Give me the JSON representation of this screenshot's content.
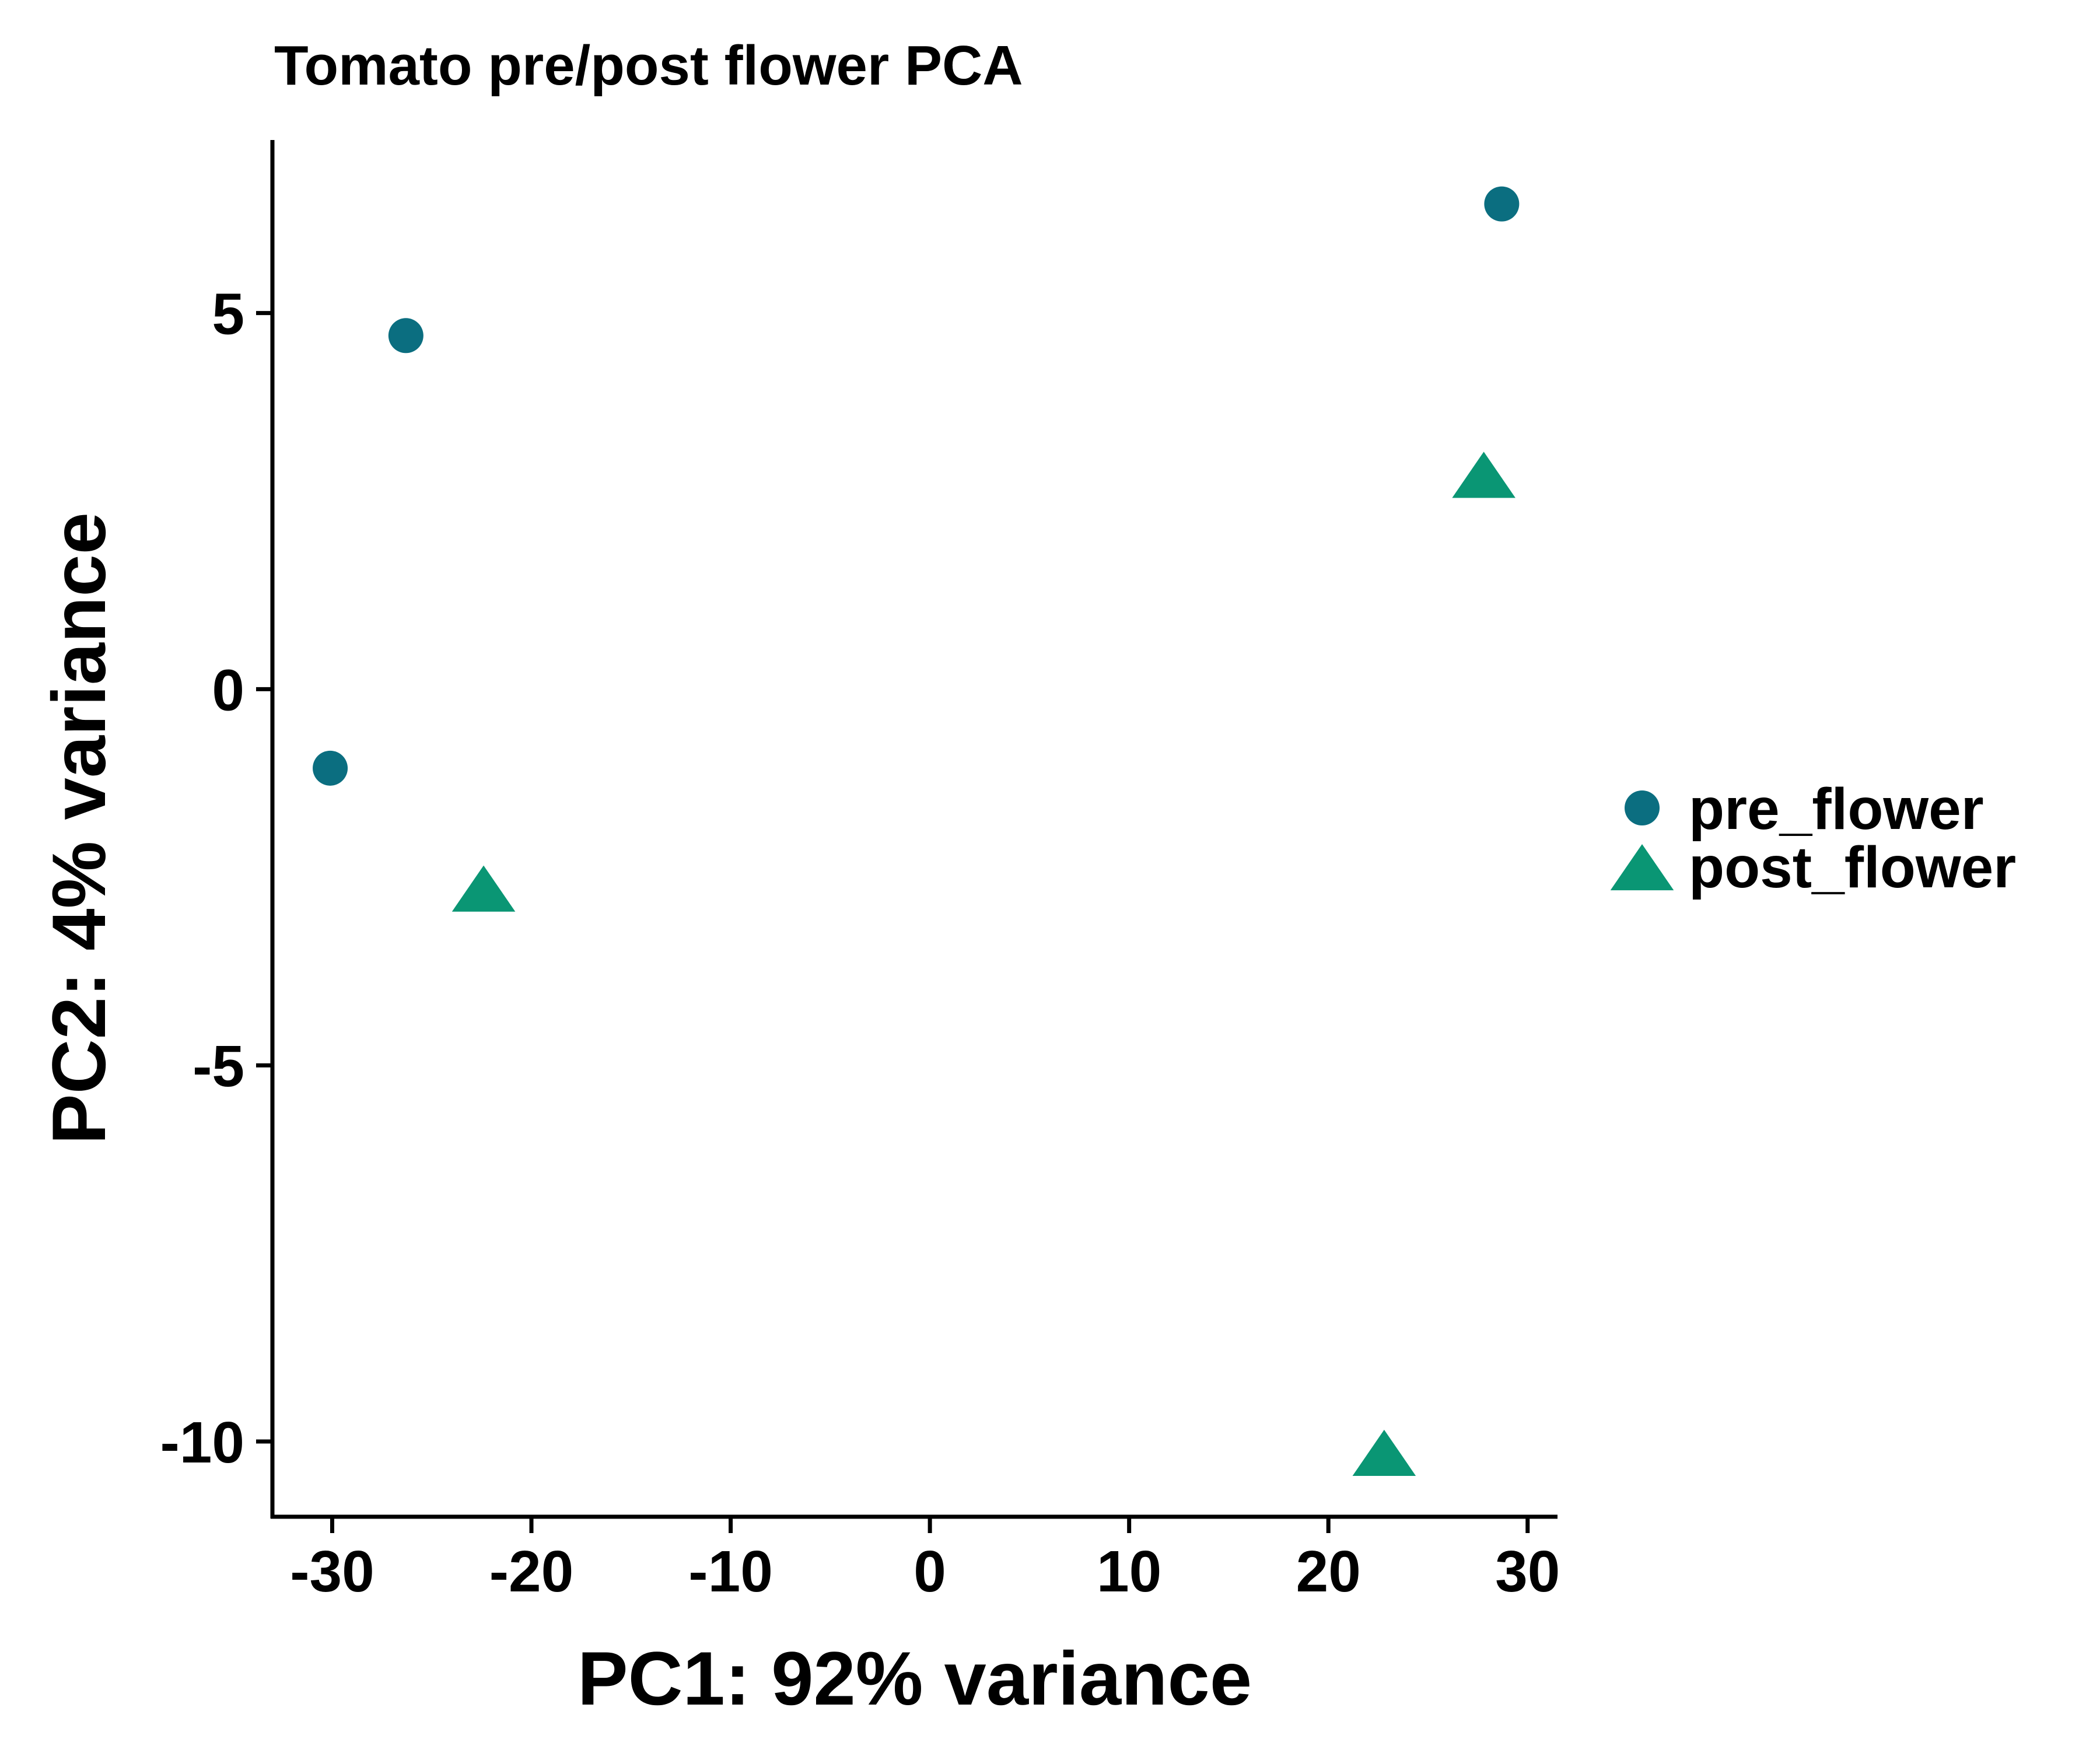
{
  "chart_data": {
    "type": "scatter",
    "title": "Tomato pre/post flower PCA",
    "xlabel": "PC1: 92% variance",
    "ylabel": "PC2: 4% variance",
    "xlim": [
      -33,
      31.5
    ],
    "ylim": [
      -11,
      7.3
    ],
    "xticks": [
      -30,
      -20,
      -10,
      0,
      10,
      20,
      30
    ],
    "yticks": [
      -10,
      -5,
      0,
      5
    ],
    "xtick_labels": [
      "-30",
      "-20",
      "-10",
      "0",
      "10",
      "20",
      "30"
    ],
    "ytick_labels": [
      "-10",
      "-5",
      "0",
      "5"
    ],
    "grid": false,
    "legend_position": "right",
    "series": [
      {
        "name": "pre_flower",
        "marker": "circle",
        "color": "#0B6E80",
        "points": [
          {
            "x": -26.3,
            "y": 4.7
          },
          {
            "x": -30.1,
            "y": -1.05
          },
          {
            "x": 28.7,
            "y": 6.45
          }
        ]
      },
      {
        "name": "post_flower",
        "marker": "triangle",
        "color": "#0A9674",
        "points": [
          {
            "x": -22.4,
            "y": -2.7
          },
          {
            "x": 27.8,
            "y": 2.8
          },
          {
            "x": 22.8,
            "y": -10.2
          }
        ]
      }
    ]
  }
}
